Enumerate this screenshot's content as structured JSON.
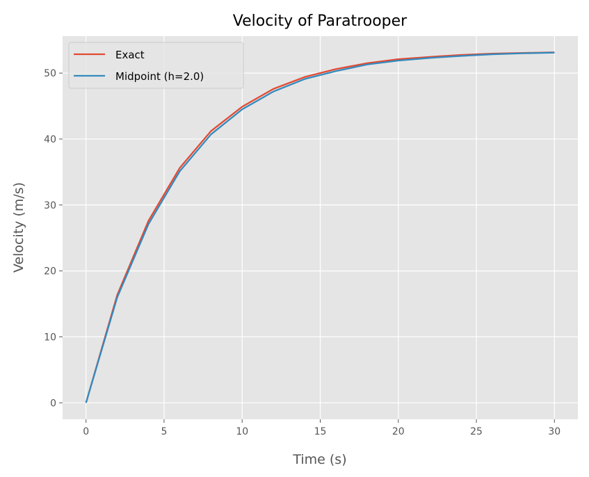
{
  "chart_data": {
    "type": "line",
    "title": "Velocity of Paratrooper",
    "xlabel": "Time (s)",
    "ylabel": "Velocity (m/s)",
    "xlim": [
      -1.5,
      31.5
    ],
    "ylim": [
      -2.5,
      55.6
    ],
    "xticks": [
      0,
      5,
      10,
      15,
      20,
      25,
      30
    ],
    "yticks": [
      0,
      10,
      20,
      30,
      40,
      50
    ],
    "grid": true,
    "legend_position": "top-left",
    "x": [
      0,
      2,
      4,
      6,
      8,
      10,
      12,
      14,
      16,
      18,
      20,
      22,
      24,
      26,
      28,
      30
    ],
    "series": [
      {
        "name": "Exact",
        "color": "#E24A33",
        "values": [
          0,
          16.35,
          27.6,
          35.6,
          41.2,
          44.9,
          47.6,
          49.4,
          50.6,
          51.5,
          52.1,
          52.45,
          52.75,
          52.95,
          53.05,
          53.15
        ]
      },
      {
        "name": "Midpoint (h=2.0)",
        "color": "#348ABD",
        "values": [
          0,
          16.0,
          27.1,
          35.1,
          40.7,
          44.5,
          47.2,
          49.1,
          50.3,
          51.3,
          51.9,
          52.3,
          52.6,
          52.85,
          53.0,
          53.1
        ]
      }
    ]
  }
}
